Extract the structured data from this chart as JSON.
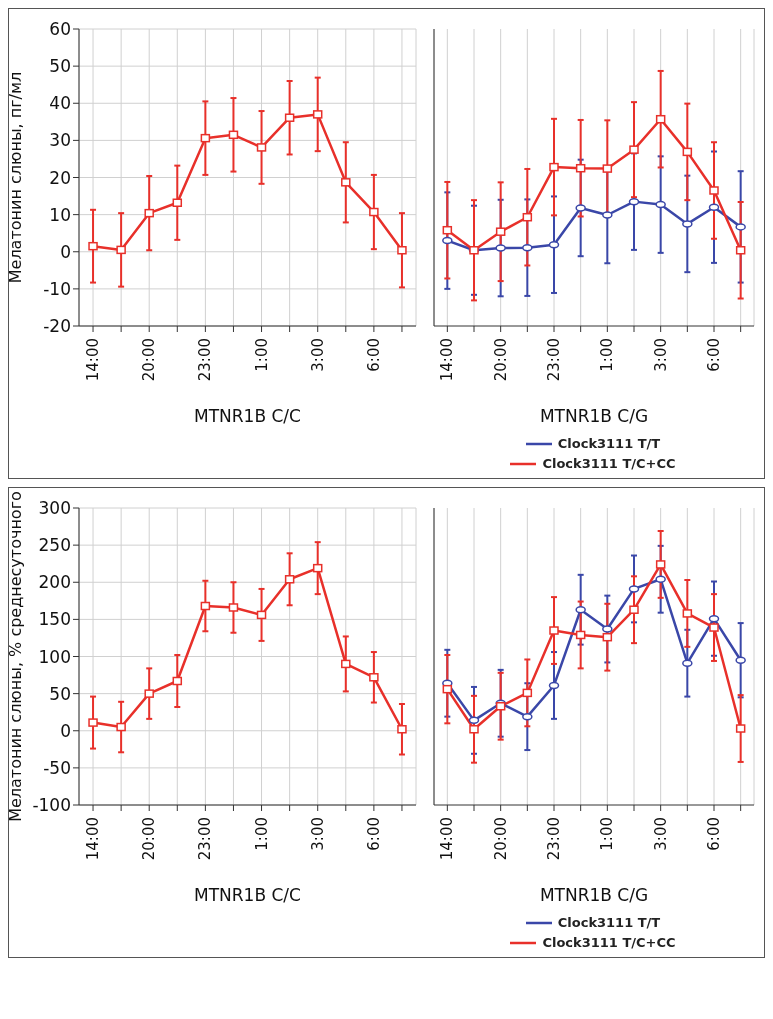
{
  "chart_data": [
    {
      "type": "line",
      "ylabel": "Мелатонин слюны, пг/мл",
      "xlabel": "MTNR1B C/C",
      "categories": [
        "14:00",
        null,
        "20:00",
        null,
        "23:00",
        null,
        "1:00",
        null,
        "3:00",
        null,
        "6:00",
        null
      ],
      "ylim": [
        -20,
        60
      ],
      "yticks": [
        -20,
        -10,
        0,
        10,
        20,
        30,
        40,
        50,
        60
      ],
      "grid": true,
      "line_style": "solid",
      "series": [
        {
          "color": "#e8302a",
          "marker": "square",
          "values": [
            1.5,
            0.5,
            10.4,
            13.2,
            30.6,
            31.5,
            28.1,
            36.1,
            37.0,
            18.7,
            10.7,
            0.4
          ],
          "errors": [
            9.8,
            9.9,
            10,
            10,
            9.9,
            9.9,
            9.8,
            9.9,
            9.9,
            10.8,
            10,
            10
          ]
        }
      ]
    },
    {
      "type": "line",
      "xlabel": "MTNR1B C/G",
      "categories": [
        "14:00",
        null,
        "20:00",
        null,
        "23:00",
        null,
        "1:00",
        null,
        "3:00",
        null,
        "6:00",
        null
      ],
      "ylim": [
        -20,
        60
      ],
      "yticks": [
        -20,
        -10,
        0,
        10,
        20,
        30,
        40,
        50,
        60
      ],
      "grid": true,
      "line_style": "solid",
      "tick_labels": "x",
      "legend": "bottom",
      "series": [
        {
          "name": "Clock3111 T/T",
          "color": "#3a47a8",
          "marker": "circle",
          "values": [
            3.0,
            0.4,
            1.0,
            1.1,
            1.9,
            11.8,
            9.9,
            13.5,
            12.7,
            7.5,
            12.0,
            6.7
          ],
          "errors": [
            13,
            12,
            13,
            13,
            13,
            13,
            13,
            13,
            13,
            13,
            15,
            15
          ]
        },
        {
          "name": "Clock3111 T/C+CC",
          "color": "#e8302a",
          "marker": "square",
          "values": [
            5.8,
            0.4,
            5.4,
            9.3,
            22.8,
            22.5,
            22.4,
            27.5,
            35.7,
            26.9,
            16.5,
            0.4
          ],
          "errors": [
            13,
            13.5,
            13.3,
            13,
            13,
            13,
            13,
            12.8,
            13,
            13,
            13,
            13
          ]
        }
      ]
    },
    {
      "type": "line",
      "ylabel": "Мелатонин слюны, % среднесуточного",
      "xlabel": "MTNR1B C/C",
      "categories": [
        "14:00",
        null,
        "20:00",
        null,
        "23:00",
        null,
        "1:00",
        null,
        "3:00",
        null,
        "6:00",
        null
      ],
      "ylim": [
        -100,
        300
      ],
      "yticks": [
        -100,
        -50,
        0,
        50,
        100,
        150,
        200,
        250,
        300
      ],
      "grid": true,
      "line_style": "solid",
      "series": [
        {
          "color": "#e8302a",
          "marker": "square",
          "values": [
            11,
            5,
            50,
            67,
            168,
            166,
            156,
            204,
            219,
            90,
            72,
            2
          ],
          "errors": [
            35,
            34,
            34,
            35,
            34,
            34,
            35,
            35,
            35,
            37,
            34,
            34
          ]
        }
      ]
    },
    {
      "type": "line",
      "xlabel": "MTNR1B C/G",
      "categories": [
        "14:00",
        null,
        "20:00",
        null,
        "23:00",
        null,
        "1:00",
        null,
        "3:00",
        null,
        "6:00",
        null
      ],
      "ylim": [
        -100,
        300
      ],
      "yticks": [
        -100,
        -50,
        0,
        50,
        100,
        150,
        200,
        250,
        300
      ],
      "grid": true,
      "line_style": "solid",
      "tick_labels": "x",
      "legend": "bottom",
      "series": [
        {
          "name": "Clock3111 T/T",
          "color": "#3a47a8",
          "marker": "circle",
          "values": [
            64,
            14,
            37,
            19,
            61,
            163,
            137,
            191,
            204,
            91,
            151,
            95
          ],
          "errors": [
            45,
            45,
            45,
            45,
            45,
            47,
            45,
            45,
            45,
            45,
            50,
            50
          ]
        },
        {
          "name": "Clock3111 T/C+CC",
          "color": "#e8302a",
          "marker": "square",
          "values": [
            56,
            2,
            33,
            51,
            135,
            129,
            126,
            163,
            224,
            158,
            139,
            3
          ],
          "errors": [
            46,
            45,
            45,
            45,
            45,
            45,
            45,
            45,
            45,
            45,
            45,
            45
          ]
        }
      ]
    }
  ]
}
